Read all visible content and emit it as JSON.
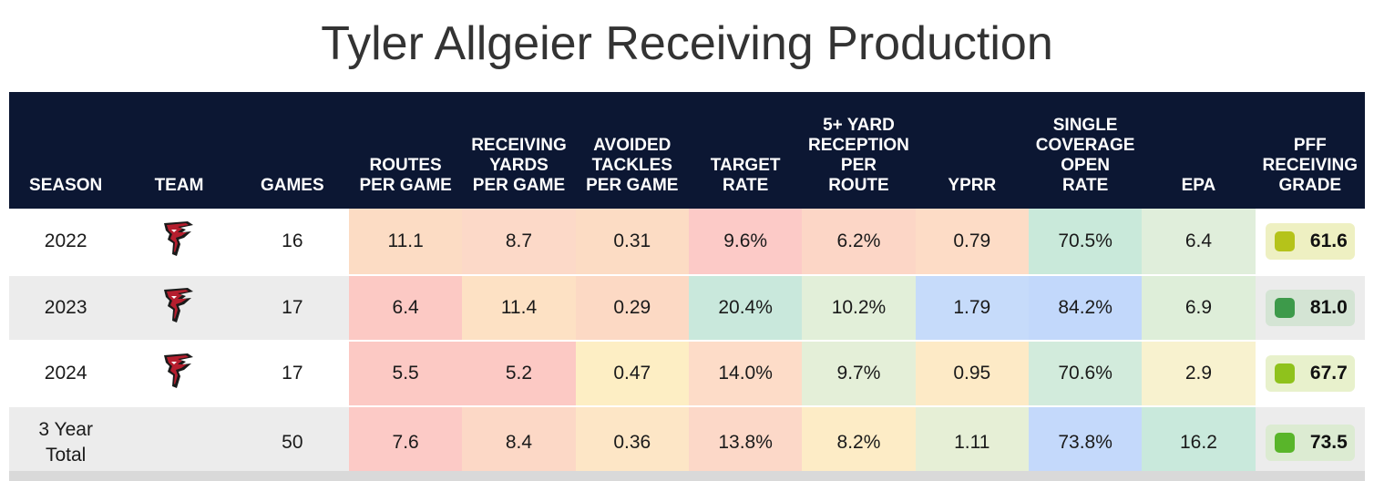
{
  "title": "Tyler Allgeier Receiving Production",
  "headers": [
    [
      "SEASON"
    ],
    [
      "TEAM"
    ],
    [
      "GAMES"
    ],
    [
      "ROUTES",
      "PER GAME"
    ],
    [
      "RECEIVING",
      "YARDS",
      "PER GAME"
    ],
    [
      "AVOIDED",
      "TACKLES",
      "PER GAME"
    ],
    [
      "TARGET",
      "RATE"
    ],
    [
      "5+ YARD",
      "RECEPTION",
      "PER",
      "ROUTE"
    ],
    [
      "YPRR"
    ],
    [
      "SINGLE",
      "COVERAGE",
      "OPEN",
      "RATE"
    ],
    [
      "EPA"
    ],
    [
      "PFF",
      "RECEIVING",
      "GRADE"
    ]
  ],
  "rows": [
    {
      "season": "2022",
      "team_icon": "falcons-logo-icon",
      "games": "16",
      "stats": [
        "11.1",
        "8.7",
        "0.31",
        "9.6%",
        "6.2%",
        "0.79",
        "70.5%",
        "6.4"
      ],
      "stat_colors": [
        "#fcdcc4",
        "#fcd9c8",
        "#fcdcc4",
        "#fccac7",
        "#fcd6c6",
        "#fddcc6",
        "#c9e9da",
        "#e0eedb"
      ],
      "grade": "61.6",
      "grade_color": "#b5c31a",
      "grade_bg": "#eef0c2"
    },
    {
      "season": "2023",
      "team_icon": "falcons-logo-icon",
      "games": "17",
      "stats": [
        "6.4",
        "11.4",
        "0.29",
        "20.4%",
        "10.2%",
        "1.79",
        "84.2%",
        "6.9"
      ],
      "stat_colors": [
        "#fcc9c4",
        "#fde1c4",
        "#fcd9c4",
        "#c9e8dc",
        "#e2efd9",
        "#c6dbfa",
        "#c2d8fb",
        "#deeed9"
      ],
      "grade": "81.0",
      "grade_color": "#3d9a4a",
      "grade_bg": "#d4e4d4"
    },
    {
      "season": "2024",
      "team_icon": "falcons-logo-icon",
      "games": "17",
      "stats": [
        "5.5",
        "5.2",
        "0.47",
        "14.0%",
        "9.7%",
        "0.95",
        "70.6%",
        "2.9"
      ],
      "stat_colors": [
        "#fcc9c4",
        "#fcc9c4",
        "#fdeec4",
        "#fddcc8",
        "#e4efd8",
        "#fdeac6",
        "#d2ebdc",
        "#f8f2cf"
      ],
      "grade": "67.7",
      "grade_color": "#8fc21c",
      "grade_bg": "#e8f1cc"
    },
    {
      "season": "3 Year Total",
      "team_icon": "",
      "games": "50",
      "stats": [
        "7.6",
        "8.4",
        "0.36",
        "13.8%",
        "8.2%",
        "1.11",
        "73.8%",
        "16.2"
      ],
      "stat_colors": [
        "#fccac6",
        "#fcd8c6",
        "#fde6c6",
        "#fcd8c8",
        "#fdecc6",
        "#e6efd6",
        "#c4d9fb",
        "#c9e9dc"
      ],
      "grade": "73.5",
      "grade_color": "#59b52a",
      "grade_bg": "#dcebd2"
    }
  ]
}
